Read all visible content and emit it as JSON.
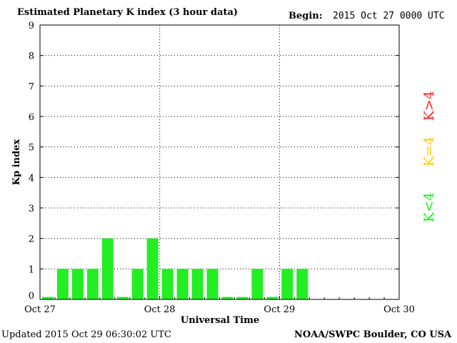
{
  "header": {
    "title": "Estimated Planetary K index (3 hour data)",
    "begin_label": "Begin:",
    "begin_value": "2015 Oct 27 0000 UTC"
  },
  "footer": {
    "updated": "Updated 2015 Oct 29 06:30:02 UTC",
    "credit": "NOAA/SWPC Boulder, CO USA"
  },
  "legend": [
    {
      "label": "K<4",
      "color": "#22ee22"
    },
    {
      "label": "K=4",
      "color": "#ffcc00"
    },
    {
      "label": "K>4",
      "color": "#ff2222"
    }
  ],
  "chart_data": {
    "type": "bar",
    "title": "Estimated Planetary K index (3 hour data)",
    "xlabel": "Universal Time",
    "ylabel": "Kp index",
    "ylim": [
      0,
      9
    ],
    "yticks": [
      0,
      1,
      2,
      3,
      4,
      5,
      6,
      7,
      8,
      9
    ],
    "xtick_labels": [
      "Oct 27",
      "Oct 28",
      "Oct 29",
      "Oct 30"
    ],
    "bar_color": "#22ee22",
    "grid": true,
    "values": [
      0,
      1,
      1,
      1,
      2,
      0,
      1,
      2,
      1,
      1,
      1,
      1,
      0,
      0,
      1,
      0,
      1,
      1
    ]
  }
}
